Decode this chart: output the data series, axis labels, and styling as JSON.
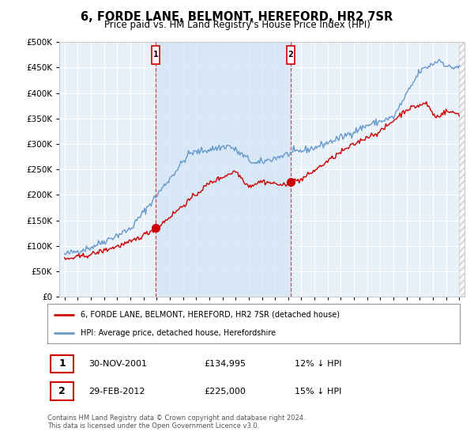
{
  "title": "6, FORDE LANE, BELMONT, HEREFORD, HR2 7SR",
  "subtitle": "Price paid vs. HM Land Registry's House Price Index (HPI)",
  "legend_label_red": "6, FORDE LANE, BELMONT, HEREFORD, HR2 7SR (detached house)",
  "legend_label_blue": "HPI: Average price, detached house, Herefordshire",
  "transaction1_date": "30-NOV-2001",
  "transaction1_price": "£134,995",
  "transaction1_hpi": "12% ↓ HPI",
  "transaction2_date": "29-FEB-2012",
  "transaction2_price": "£225,000",
  "transaction2_hpi": "15% ↓ HPI",
  "footer": "Contains HM Land Registry data © Crown copyright and database right 2024.\nThis data is licensed under the Open Government Licence v3.0.",
  "red_color": "#cc0000",
  "blue_color": "#6699cc",
  "background_plot": "#e8f0f8",
  "shade_color": "#d0e4f5",
  "ylim": [
    0,
    500000
  ],
  "yticks": [
    0,
    50000,
    100000,
    150000,
    200000,
    250000,
    300000,
    350000,
    400000,
    450000,
    500000
  ],
  "marker1_x": 2001.917,
  "marker1_y": 134995,
  "marker2_x": 2012.167,
  "marker2_y": 225000,
  "xlim_min": 1994.6,
  "xlim_max": 2025.4
}
